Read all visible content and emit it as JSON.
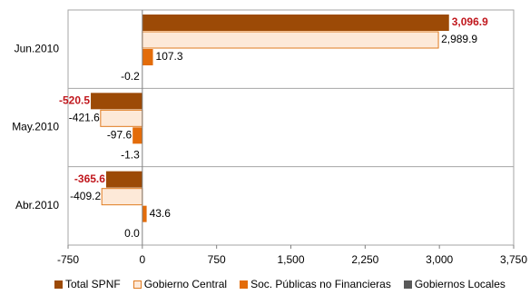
{
  "chart_data": {
    "type": "bar",
    "orientation": "horizontal",
    "categories": [
      "Jun.2010",
      "May.2010",
      "Abr.2010"
    ],
    "series": [
      {
        "name": "Total SPNF",
        "values": [
          3096.9,
          -520.5,
          -365.6
        ],
        "labels": [
          "3,096.9",
          "-520.5",
          "-365.6"
        ],
        "color": "#9c4a06",
        "label_bold": true
      },
      {
        "name": "Gobierno Central",
        "values": [
          2989.9,
          -421.6,
          -409.2
        ],
        "labels": [
          "2,989.9",
          "-421.6",
          "-409.2"
        ],
        "color": "#fde9d8",
        "stroke": "#e07b20"
      },
      {
        "name": "Soc. Públicas no Financieras",
        "values": [
          107.3,
          -97.6,
          43.6
        ],
        "labels": [
          "107.3",
          "-97.6",
          "43.6"
        ],
        "color": "#e36c0a"
      },
      {
        "name": "Gobiernos Locales",
        "values": [
          -0.2,
          -1.3,
          0.0
        ],
        "labels": [
          "-0.2",
          "-1.3",
          "0.0"
        ],
        "color": "#595959"
      }
    ],
    "xlim": [
      -750,
      3750
    ],
    "xticks": [
      -750,
      0,
      750,
      1500,
      2250,
      3000,
      3750
    ],
    "xtick_labels": [
      "-750",
      "0",
      "750",
      "1,500",
      "2,250",
      "3,000",
      "3,750"
    ],
    "legend_position": "bottom"
  }
}
